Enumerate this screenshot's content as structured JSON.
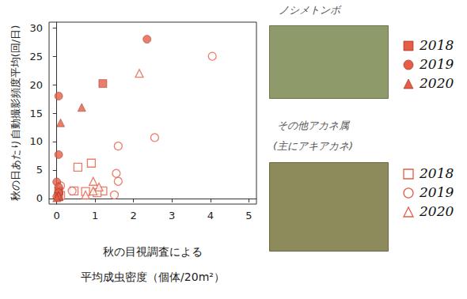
{
  "chart_data": {
    "type": "scatter",
    "xlabel": "秋の目視調査による\n平均成虫密度（個体/20m²）",
    "ylabel": "秋の日あたり自動撮影頻度平均(回/日)",
    "annotations": [
      "ノシメトンボ",
      "その他アカネ属",
      "(主にアキアカネ)"
    ],
    "xlim": [
      -0.2,
      5.2
    ],
    "xticks": [
      0,
      1,
      2,
      3,
      4,
      5
    ],
    "ylim": [
      -1,
      31
    ],
    "yticks": [
      0,
      5,
      10,
      15,
      20,
      25,
      30
    ],
    "grid": false,
    "series": [
      {
        "name": "2018",
        "color": "#e65c45",
        "marker": "filled_square",
        "x": [
          1.2,
          0.05,
          0.05
        ],
        "values": [
          20.2,
          1.3,
          0.3
        ]
      },
      {
        "name": "2019",
        "color": "#e65c45",
        "marker": "filled_circle",
        "x": [
          0.05,
          2.35,
          0.05,
          0.0,
          0.05,
          0.05,
          0.0
        ],
        "values": [
          18,
          28,
          7.7,
          2.9,
          2.0,
          1.0,
          0.3
        ]
      },
      {
        "name": "2020",
        "color": "#e65c45",
        "marker": "filled_triangle",
        "x": [
          0.65,
          0.1,
          0.05,
          0.0
        ],
        "values": [
          16,
          13.3,
          0.5,
          0.1
        ]
      },
      {
        "name": "2018",
        "color": "#e65c45",
        "marker": "open_square",
        "x": [
          0.55,
          0.9,
          0.45,
          0.75,
          1.2,
          0.1,
          1.05
        ],
        "values": [
          5.5,
          6.2,
          1.3,
          1.2,
          1.3,
          0.5,
          1.0
        ]
      },
      {
        "name": "2019",
        "color": "#e65c45",
        "marker": "open_circle",
        "x": [
          4.05,
          2.55,
          1.6,
          1.55,
          1.6,
          1.5,
          0.4,
          0.1,
          0.05
        ],
        "values": [
          25,
          10.7,
          9.2,
          4.4,
          3.0,
          0.6,
          1.3,
          2.2,
          1.0
        ]
      },
      {
        "name": "2020",
        "color": "#e65c45",
        "marker": "open_triangle",
        "x": [
          2.15,
          0.95,
          1.1,
          0.95,
          0.75,
          0.05
        ],
        "values": [
          22,
          3.0,
          2.0,
          1.3,
          0.6,
          0.3
        ]
      }
    ]
  }
}
